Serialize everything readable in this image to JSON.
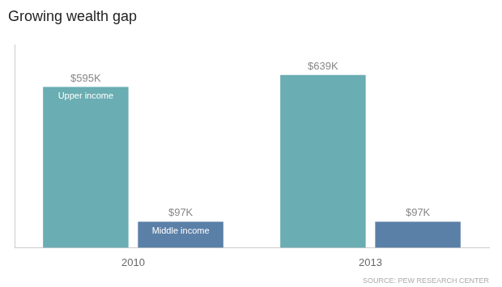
{
  "chart_data": {
    "type": "bar",
    "title": "Growing wealth gap",
    "source": "SOURCE: PEW RESEARCH CENTER",
    "categories": [
      "2010",
      "2013"
    ],
    "series": [
      {
        "name": "Upper income",
        "color": "#6aadb2",
        "values": [
          595,
          639
        ],
        "value_labels": [
          "$595K",
          "$639K"
        ]
      },
      {
        "name": "Middle income",
        "color": "#5b80a8",
        "values": [
          97,
          97
        ],
        "value_labels": [
          "$97K",
          "$97K"
        ]
      }
    ],
    "ylim": [
      0,
      750
    ],
    "grid": false,
    "data_labels": true,
    "tick_labels": "x"
  }
}
